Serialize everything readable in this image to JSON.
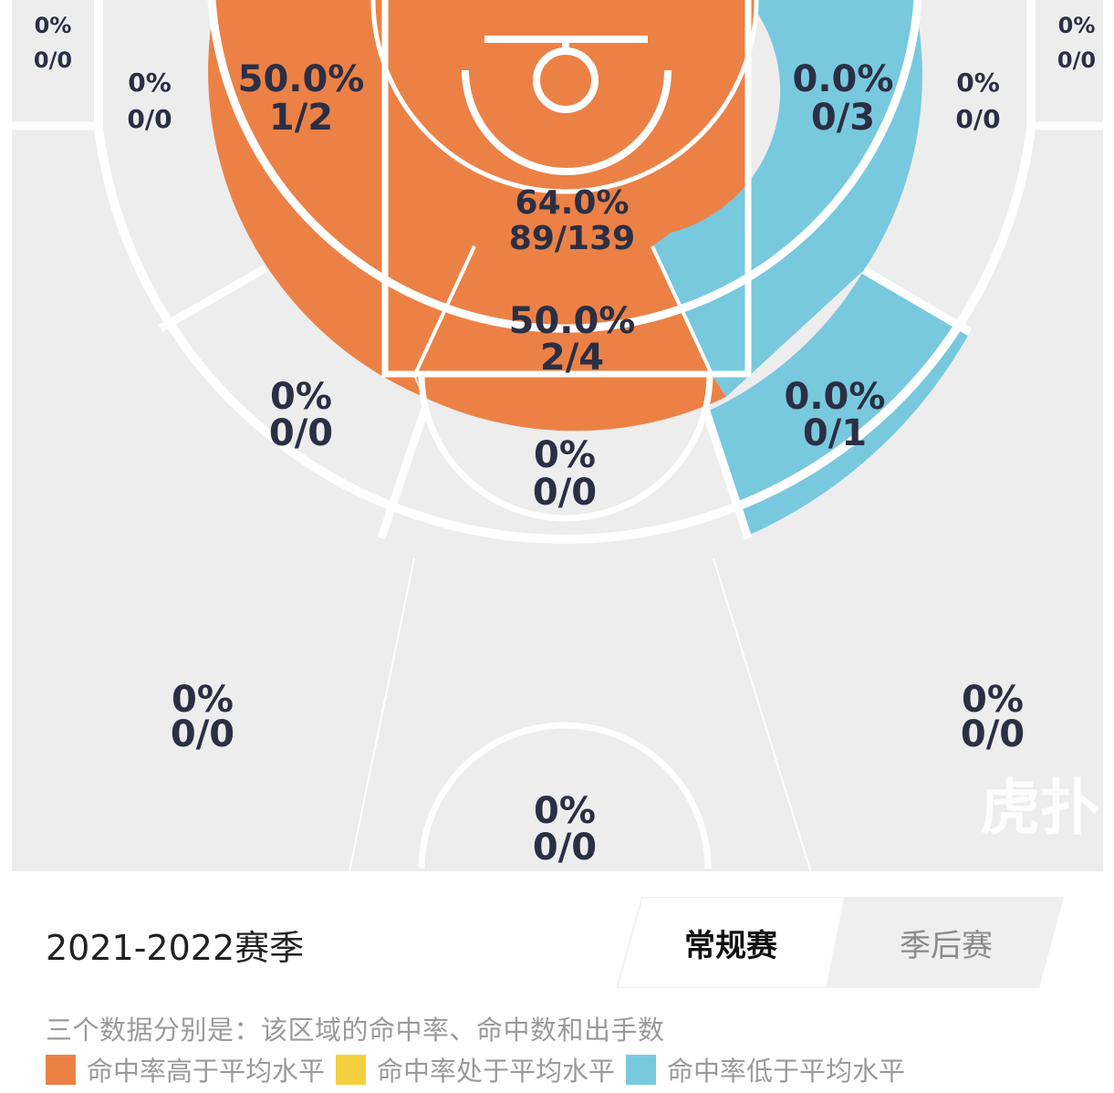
{
  "colors": {
    "above": "#ec8146",
    "average": "#f5d03e",
    "below": "#78c9de",
    "neutral": "#eeedee",
    "line": "#ffffff",
    "text": "#2b2f44"
  },
  "zones": {
    "corner_left": {
      "pct": "0%",
      "made_att": "0/0"
    },
    "corner_right": {
      "pct": "0%",
      "made_att": "0/0"
    },
    "left_baseline_mid": {
      "pct": "0%",
      "made_att": "0/0"
    },
    "right_baseline_mid": {
      "pct": "0%",
      "made_att": "0/0"
    },
    "left_short_mid": {
      "pct": "50.0%",
      "made_att": "1/2"
    },
    "right_short_mid": {
      "pct": "0.0%",
      "made_att": "0/3"
    },
    "restricted": {
      "pct": "64.0%",
      "made_att": "89/139"
    },
    "paint": {
      "pct": "50.0%",
      "made_att": "2/4"
    },
    "left_elbow": {
      "pct": "0%",
      "made_att": "0/0"
    },
    "right_elbow": {
      "pct": "0.0%",
      "made_att": "0/1"
    },
    "top_key": {
      "pct": "0%",
      "made_att": "0/0"
    },
    "left_wing_three": {
      "pct": "0%",
      "made_att": "0/0"
    },
    "right_wing_three": {
      "pct": "0%",
      "made_att": "0/0"
    },
    "top_three": {
      "pct": "0%",
      "made_att": "0/0"
    }
  },
  "watermark": "虎扑",
  "season_title": "2021-2022赛季",
  "tabs": {
    "regular": "常规赛",
    "playoff": "季后赛"
  },
  "note": "三个数据分别是：该区域的命中率、命中数和出手数",
  "legend": [
    {
      "label": "命中率高于平均水平",
      "color": "#ec8146"
    },
    {
      "label": "命中率处于平均水平",
      "color": "#f5d03e"
    },
    {
      "label": "命中率低于平均水平",
      "color": "#78c9de"
    }
  ]
}
